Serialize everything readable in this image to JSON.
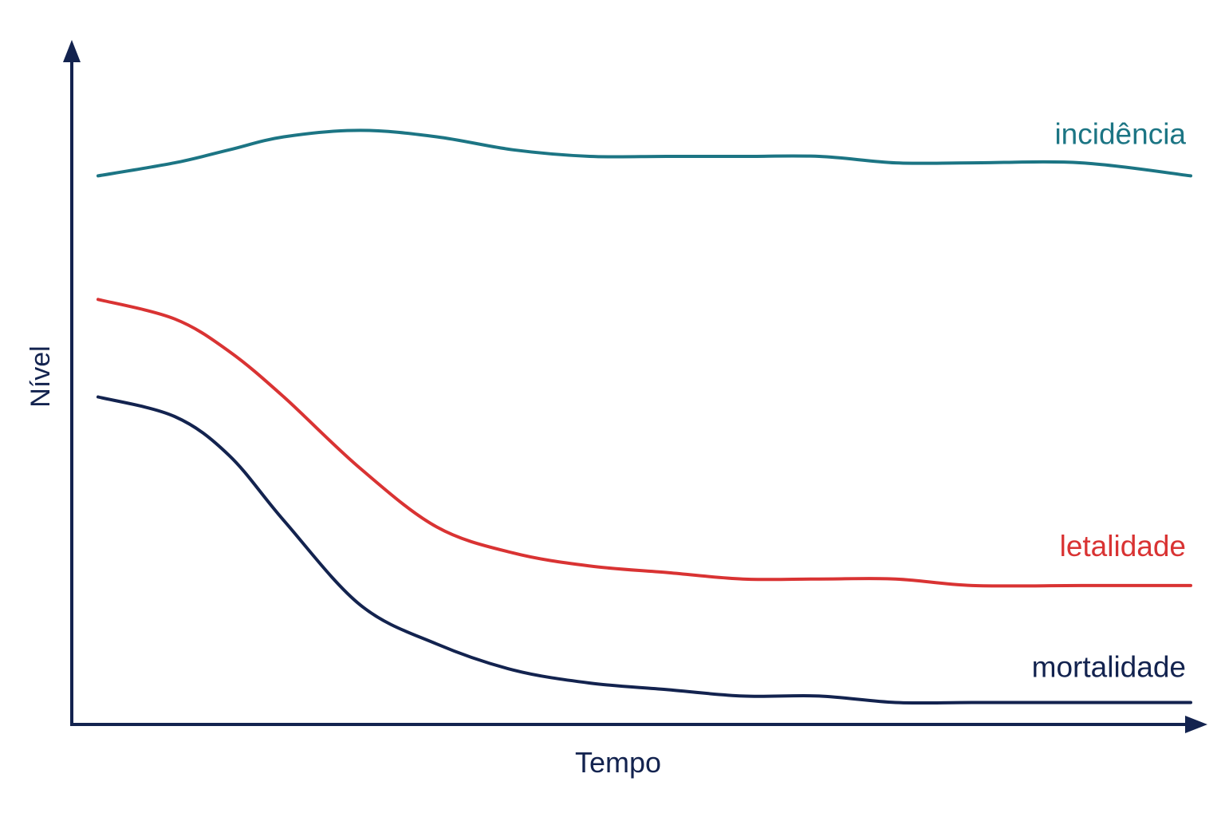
{
  "chart_data": {
    "type": "line",
    "title": "",
    "xlabel": "Tempo",
    "ylabel": "Nível",
    "xlim": [
      0,
      100
    ],
    "ylim": [
      0,
      100
    ],
    "grid": false,
    "legend": "inline labels at right end of each line",
    "x": [
      0,
      7,
      12,
      17,
      24,
      31,
      38,
      45,
      52,
      59,
      66,
      73,
      80,
      90,
      100
    ],
    "series": [
      {
        "name": "incidência",
        "color": "#1c7584",
        "values": [
          84,
          86,
          88,
          90,
          91,
          90,
          88,
          87,
          87,
          87,
          87,
          86,
          86,
          86,
          84
        ]
      },
      {
        "name": "letalidade",
        "color": "#d93333",
        "values": [
          65,
          62,
          57,
          50,
          39,
          30,
          26,
          24,
          23,
          22,
          22,
          22,
          21,
          21,
          21
        ]
      },
      {
        "name": "mortalidade",
        "color": "#13234f",
        "values": [
          50,
          47,
          41,
          31,
          18,
          12,
          8,
          6,
          5,
          4,
          4,
          3,
          3,
          3,
          3
        ]
      }
    ]
  }
}
